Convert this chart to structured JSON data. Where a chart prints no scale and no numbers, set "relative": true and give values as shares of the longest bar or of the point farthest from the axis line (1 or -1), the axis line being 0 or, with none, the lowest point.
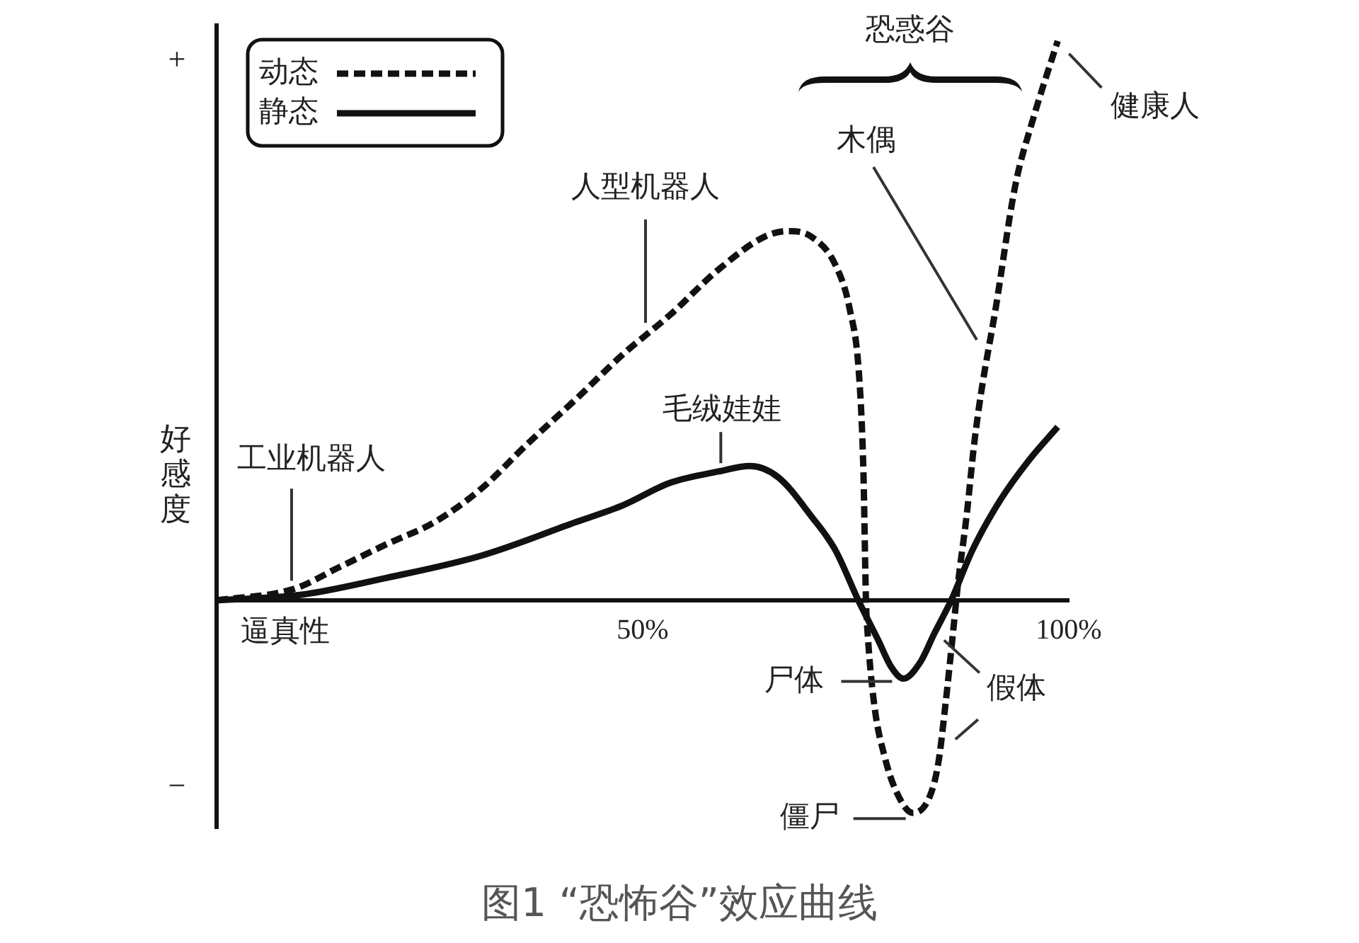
{
  "chart_data": {
    "type": "line",
    "title": "图1 “恐怖谷”效应曲线",
    "xlabel": "逼真性",
    "ylabel": "好感度",
    "relative": true,
    "legend": "top left",
    "marker": "none",
    "xlim": [
      0,
      100
    ],
    "xticks": [
      {
        "value": 50,
        "label": "50%"
      },
      {
        "value": 100,
        "label": "100%"
      }
    ],
    "series": [
      {
        "name": "动态",
        "color": "#111111",
        "line_style": "dashed",
        "x": [
          0,
          9,
          14.5,
          19.9,
          25.6,
          31.1,
          36.5,
          42.2,
          47.7,
          53.2,
          58.8,
          64.3,
          67.1,
          69.8,
          72.6,
          74.3,
          75.4,
          75.9,
          76.2,
          76.4,
          77.2,
          78.4,
          79.7,
          81.7,
          83.7,
          84.7,
          85.5,
          86.4,
          87.0,
          88.0,
          88.9,
          89.7,
          91.4,
          93.7,
          95.8,
          98.7
        ],
        "values": [
          0,
          0.02,
          0.06,
          0.1,
          0.14,
          0.2,
          0.28,
          0.36,
          0.44,
          0.51,
          0.59,
          0.65,
          0.66,
          0.65,
          0.6,
          0.52,
          0.4,
          0.23,
          0,
          -0.06,
          -0.19,
          -0.28,
          -0.34,
          -0.38,
          -0.35,
          -0.29,
          -0.19,
          -0.06,
          0.03,
          0.15,
          0.28,
          0.37,
          0.52,
          0.74,
          0.86,
          1
        ]
      },
      {
        "name": "静态",
        "color": "#111111",
        "line_style": "solid",
        "x": [
          0,
          10,
          19.9,
          31.1,
          42.2,
          47.7,
          53.2,
          58.8,
          62.6,
          65.9,
          69.8,
          72.6,
          75.3,
          77.6,
          79.2,
          80.6,
          82.6,
          84.2,
          86.2,
          88.7,
          92.0,
          95.3,
          98.7
        ],
        "values": [
          0,
          0.01,
          0.04,
          0.08,
          0.14,
          0.17,
          0.21,
          0.23,
          0.24,
          0.22,
          0.15,
          0.09,
          0,
          -0.07,
          -0.12,
          -0.14,
          -0.11,
          -0.06,
          0,
          0.09,
          0.18,
          0.25,
          0.31
        ]
      }
    ],
    "annotations": [
      {
        "text": "工业机器人",
        "x": 8.8,
        "y": 0.02
      },
      "人型机器人",
      {
        "text": "毛绒娃娃",
        "x": 59,
        "y": 0.23
      },
      "恐惑谷",
      "木偶",
      {
        "text": "健康人",
        "x": 98.7,
        "y": 1
      },
      {
        "text": "尸体",
        "x": 80.6,
        "y": -0.14
      },
      {
        "text": "假体",
        "x": 85.7,
        "y": -0.16
      },
      {
        "text": "僵尸",
        "x": 81.7,
        "y": -0.38
      },
      "+",
      "−"
    ]
  }
}
